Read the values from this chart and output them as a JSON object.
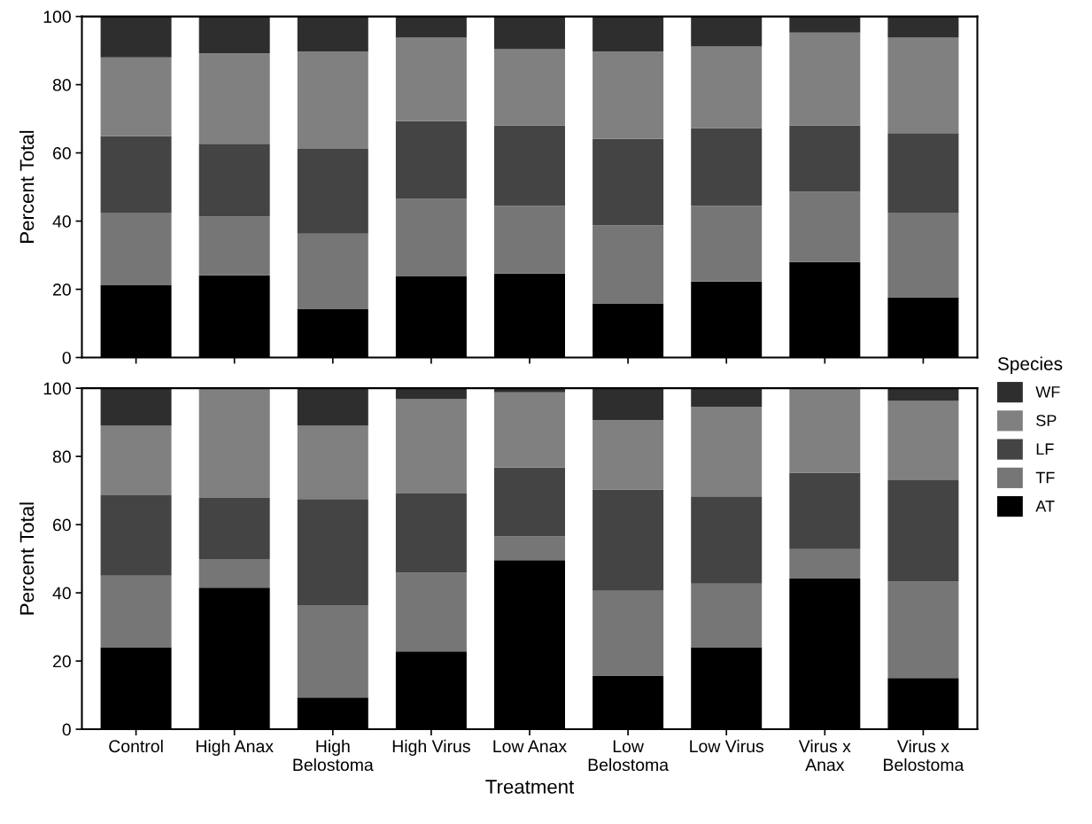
{
  "chart_data": [
    {
      "type": "bar",
      "stacked": true,
      "ylabel": "Percent Total",
      "ylim": [
        0,
        100
      ],
      "yticks": [
        0,
        20,
        40,
        60,
        80,
        100
      ],
      "grid": false,
      "tick_labels": "y",
      "legend": "right",
      "legend_title": "Species",
      "categories": [
        null,
        null,
        null,
        null,
        null,
        null,
        null,
        null,
        null
      ],
      "series": [
        {
          "name": "AT",
          "color": "#000000",
          "values": [
            21.2,
            24.1,
            14.3,
            23.8,
            24.6,
            15.7,
            22.3,
            28.0,
            17.7
          ]
        },
        {
          "name": "TF",
          "color": "#767676",
          "values": [
            21.3,
            17.2,
            22.0,
            22.7,
            19.9,
            23.1,
            22.2,
            20.6,
            24.8
          ]
        },
        {
          "name": "LF",
          "color": "#444444",
          "values": [
            22.4,
            21.4,
            24.9,
            22.8,
            23.6,
            25.3,
            22.8,
            19.5,
            23.3
          ]
        },
        {
          "name": "SP",
          "color": "#808080",
          "values": [
            23.1,
            26.5,
            28.5,
            24.5,
            22.3,
            25.6,
            23.9,
            27.2,
            28.0
          ]
        },
        {
          "name": "WF",
          "color": "#2e2e2e",
          "values": [
            12.0,
            10.8,
            10.3,
            6.2,
            9.6,
            10.3,
            8.8,
            4.7,
            6.2
          ]
        }
      ]
    },
    {
      "type": "bar",
      "stacked": true,
      "xlabel": "Treatment",
      "ylabel": "Percent Total",
      "ylim": [
        0,
        100
      ],
      "yticks": [
        0,
        20,
        40,
        60,
        80,
        100
      ],
      "grid": false,
      "categories": [
        "Control",
        "High Anax",
        "High\nBelostoma",
        "High Virus",
        "Low Anax",
        "Low\nBelostoma",
        "Low Virus",
        "Virus x\nAnax",
        "Virus x\nBelostoma"
      ],
      "series": [
        {
          "color": "#000000",
          "values": [
            23.9,
            41.5,
            9.3,
            22.8,
            49.6,
            15.7,
            23.9,
            44.2,
            15.0
          ]
        },
        {
          "color": "#767676",
          "values": [
            21.1,
            8.4,
            27.1,
            23.1,
            6.9,
            24.9,
            18.8,
            8.6,
            28.3
          ]
        },
        {
          "color": "#444444",
          "values": [
            23.6,
            17.9,
            31.1,
            23.2,
            20.2,
            29.7,
            25.6,
            22.4,
            29.7
          ]
        },
        {
          "color": "#808080",
          "values": [
            20.4,
            32.2,
            21.5,
            27.7,
            22.1,
            20.3,
            26.3,
            24.8,
            23.3
          ]
        },
        {
          "color": "#2e2e2e",
          "values": [
            11.0,
            0,
            11.0,
            3.2,
            1.2,
            9.4,
            5.4,
            0,
            3.7
          ]
        }
      ]
    }
  ]
}
